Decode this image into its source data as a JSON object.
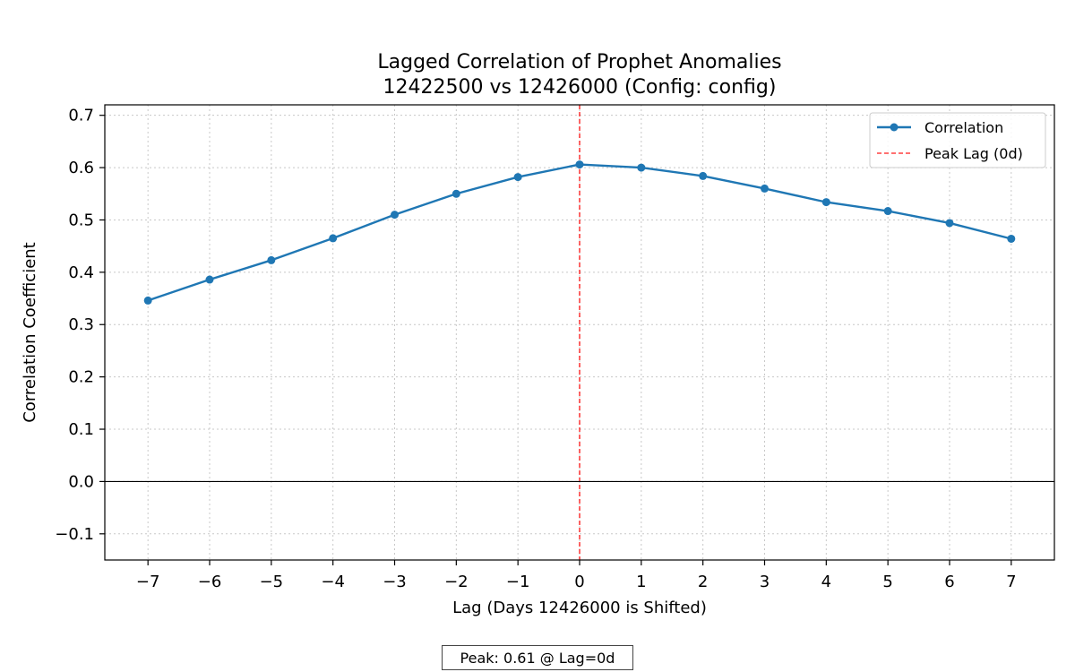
{
  "chart_data": {
    "type": "line",
    "title_lines": [
      "Lagged Correlation of Prophet Anomalies",
      "12422500 vs 12426000 (Config: config)"
    ],
    "xlabel": "Lag (Days 12426000 is Shifted)",
    "ylabel": "Correlation Coefficient",
    "xlim": [
      -7.7,
      7.7
    ],
    "ylim": [
      -0.15,
      0.72
    ],
    "x_ticks": [
      -7,
      -6,
      -5,
      -4,
      -3,
      -2,
      -1,
      0,
      1,
      2,
      3,
      4,
      5,
      6,
      7
    ],
    "x_tick_labels": [
      "−7",
      "−6",
      "−5",
      "−4",
      "−3",
      "−2",
      "−1",
      "0",
      "1",
      "2",
      "3",
      "4",
      "5",
      "6",
      "7"
    ],
    "y_ticks": [
      -0.1,
      0.0,
      0.1,
      0.2,
      0.3,
      0.4,
      0.5,
      0.6,
      0.7
    ],
    "y_tick_labels": [
      "−0.1",
      "0.0",
      "0.1",
      "0.2",
      "0.3",
      "0.4",
      "0.5",
      "0.6",
      "0.7"
    ],
    "grid": true,
    "legend_position": "top-right",
    "series": [
      {
        "name": "Correlation",
        "color": "#1f77b4",
        "x": [
          -7,
          -6,
          -5,
          -4,
          -3,
          -2,
          -1,
          0,
          1,
          2,
          3,
          4,
          5,
          6,
          7
        ],
        "values": [
          0.346,
          0.386,
          0.423,
          0.465,
          0.51,
          0.55,
          0.582,
          0.606,
          0.6,
          0.584,
          0.56,
          0.534,
          0.517,
          0.494,
          0.464
        ]
      }
    ],
    "reference_lines": [
      {
        "name": "Peak Lag (0d)",
        "orientation": "vertical",
        "value": 0,
        "color": "#ff0000",
        "style": "dashed"
      },
      {
        "orientation": "horizontal",
        "value": 0,
        "color": "#000000",
        "style": "solid"
      }
    ],
    "annotation": "Peak: 0.61 @ Lag=0d"
  }
}
